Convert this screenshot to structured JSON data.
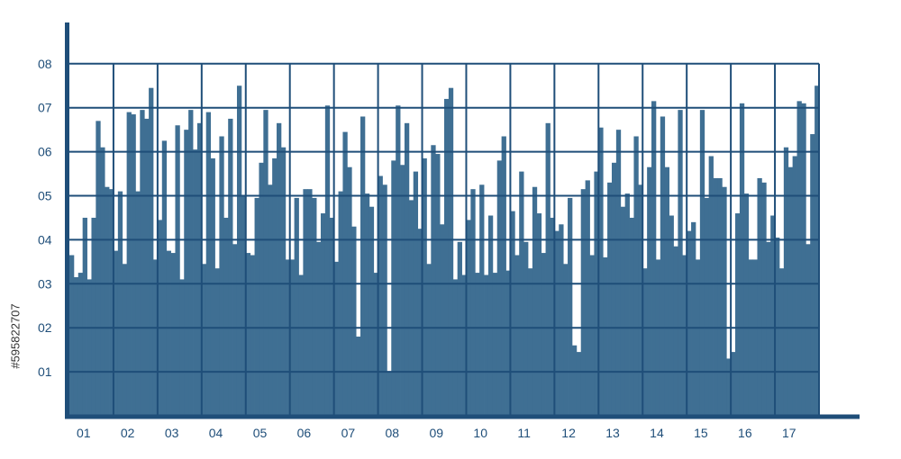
{
  "chart_data": {
    "type": "bar",
    "title": "",
    "xlabel": "",
    "ylabel": "",
    "x_tick_labels": [
      "01",
      "02",
      "03",
      "04",
      "05",
      "06",
      "07",
      "08",
      "09",
      "10",
      "11",
      "12",
      "13",
      "14",
      "15",
      "16",
      "17"
    ],
    "y_tick_labels": [
      "01",
      "02",
      "03",
      "04",
      "05",
      "06",
      "07",
      "08"
    ],
    "ylim": [
      0,
      8.8
    ],
    "xlim": [
      0,
      17
    ],
    "grid": true,
    "values": [
      3.65,
      3.15,
      3.25,
      4.5,
      3.1,
      4.5,
      6.7,
      6.1,
      5.2,
      5.15,
      3.75,
      5.1,
      3.45,
      6.9,
      6.85,
      5.1,
      6.95,
      6.75,
      7.45,
      3.55,
      4.45,
      6.25,
      3.75,
      3.7,
      6.6,
      3.1,
      6.5,
      6.95,
      6.05,
      6.65,
      3.45,
      6.9,
      5.85,
      3.35,
      6.35,
      4.5,
      6.75,
      3.9,
      7.5,
      5.0,
      3.7,
      3.65,
      4.95,
      5.75,
      6.95,
      5.25,
      5.85,
      6.65,
      6.1,
      3.55,
      3.55,
      4.95,
      3.2,
      5.15,
      5.15,
      4.95,
      3.95,
      4.6,
      7.05,
      4.5,
      3.5,
      5.1,
      6.45,
      5.65,
      4.3,
      1.8,
      6.8,
      5.05,
      4.75,
      3.25,
      5.45,
      5.25,
      1.0,
      5.8,
      7.05,
      5.7,
      6.65,
      4.9,
      5.55,
      4.25,
      5.85,
      3.45,
      6.15,
      5.95,
      4.35,
      7.2,
      7.45,
      3.1,
      3.95,
      3.2,
      4.45,
      5.15,
      3.25,
      5.25,
      3.2,
      4.55,
      3.25,
      5.8,
      6.35,
      3.3,
      4.65,
      3.65,
      5.55,
      3.95,
      3.35,
      5.2,
      4.6,
      3.7,
      6.65,
      4.5,
      4.2,
      4.35,
      3.45,
      4.95,
      1.6,
      1.45,
      5.15,
      5.35,
      3.65,
      5.55,
      6.55,
      3.6,
      5.3,
      5.75,
      6.5,
      4.75,
      5.05,
      4.5,
      6.35,
      5.25,
      3.35,
      5.65,
      7.15,
      3.55,
      6.8,
      5.65,
      4.55,
      3.85,
      6.95,
      3.65,
      4.2,
      4.4,
      3.55,
      6.95,
      4.95,
      5.9,
      5.4,
      5.4,
      5.2,
      1.3,
      1.45,
      4.6,
      7.1,
      5.05,
      3.55,
      3.55,
      5.4,
      5.3,
      3.95,
      4.55,
      4.05,
      3.35,
      6.1,
      5.65,
      5.9,
      7.15,
      7.1,
      3.9,
      6.4,
      7.5
    ],
    "colors": {
      "bar": "#3f6f93",
      "grid": "#1f4e79",
      "axis": "#1f4e79",
      "tick_text": "#1f4e79"
    }
  },
  "watermark": {
    "text": "#595822707"
  }
}
